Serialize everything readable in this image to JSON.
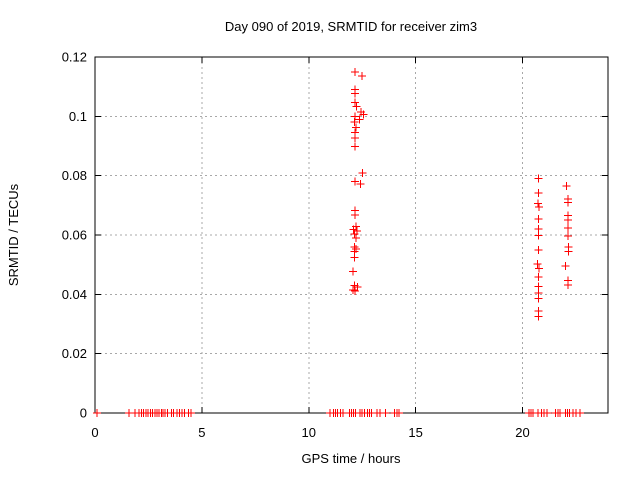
{
  "chart_data": {
    "type": "scatter",
    "title": "Day 090 of 2019, SRMTID for receiver zim3",
    "xlabel": "GPS time / hours",
    "ylabel": "SRMTID / TECUs",
    "xlim": [
      0,
      24
    ],
    "ylim": [
      0,
      0.12
    ],
    "x_ticks": [
      0,
      5,
      10,
      15,
      20
    ],
    "x_tick_labels": [
      "0",
      "5",
      "10",
      "15",
      "20"
    ],
    "y_ticks": [
      0,
      0.02,
      0.04,
      0.06,
      0.08,
      0.1,
      0.12
    ],
    "y_tick_labels": [
      "0",
      "0.02",
      "0.04",
      "0.06",
      "0.08",
      "0.1",
      "0.12"
    ],
    "grid": true,
    "legend": "none",
    "marker": "plus",
    "marker_color": "#ff0000",
    "grid_color": "#a8a8a8",
    "border_color": "#000000",
    "series": [
      {
        "name": "srmtid",
        "points": [
          [
            12.17,
            0.115
          ],
          [
            12.5,
            0.1136
          ],
          [
            12.17,
            0.109
          ],
          [
            12.17,
            0.1077
          ],
          [
            12.17,
            0.1047
          ],
          [
            12.24,
            0.1033
          ],
          [
            12.45,
            0.1015
          ],
          [
            12.55,
            0.1006
          ],
          [
            12.17,
            0.1
          ],
          [
            12.38,
            0.099
          ],
          [
            12.13,
            0.0981
          ],
          [
            12.22,
            0.0962
          ],
          [
            12.17,
            0.0946
          ],
          [
            12.17,
            0.0927
          ],
          [
            12.17,
            0.0899
          ],
          [
            12.52,
            0.0809
          ],
          [
            12.17,
            0.0781
          ],
          [
            12.41,
            0.0772
          ],
          [
            12.17,
            0.0682
          ],
          [
            12.17,
            0.0668
          ],
          [
            12.21,
            0.0629
          ],
          [
            12.1,
            0.0618
          ],
          [
            12.25,
            0.0614
          ],
          [
            12.15,
            0.0604
          ],
          [
            12.21,
            0.059
          ],
          [
            12.15,
            0.0559
          ],
          [
            12.2,
            0.0552
          ],
          [
            12.15,
            0.0545
          ],
          [
            12.15,
            0.0524
          ],
          [
            12.06,
            0.0477
          ],
          [
            12.15,
            0.0429
          ],
          [
            12.27,
            0.0424
          ],
          [
            12.08,
            0.0415
          ],
          [
            12.16,
            0.0411
          ],
          [
            20.74,
            0.0791
          ],
          [
            20.74,
            0.0742
          ],
          [
            20.72,
            0.0706
          ],
          [
            20.77,
            0.0695
          ],
          [
            20.74,
            0.0654
          ],
          [
            20.74,
            0.062
          ],
          [
            20.74,
            0.0598
          ],
          [
            20.74,
            0.055
          ],
          [
            20.71,
            0.0503
          ],
          [
            20.77,
            0.0487
          ],
          [
            20.74,
            0.0458
          ],
          [
            20.74,
            0.0426
          ],
          [
            20.74,
            0.0404
          ],
          [
            20.74,
            0.0386
          ],
          [
            20.74,
            0.0344
          ],
          [
            20.74,
            0.0325
          ],
          [
            22.05,
            0.0765
          ],
          [
            22.14,
            0.0721
          ],
          [
            22.14,
            0.0709
          ],
          [
            22.14,
            0.0665
          ],
          [
            22.14,
            0.0651
          ],
          [
            22.14,
            0.0623
          ],
          [
            22.14,
            0.0597
          ],
          [
            22.16,
            0.0559
          ],
          [
            22.16,
            0.0544
          ],
          [
            22.0,
            0.0496
          ],
          [
            22.14,
            0.0446
          ],
          [
            22.14,
            0.0432
          ],
          [
            0.1,
            0
          ],
          [
            1.6,
            0
          ],
          [
            1.86,
            0
          ],
          [
            2.05,
            0
          ],
          [
            2.18,
            0
          ],
          [
            2.28,
            0
          ],
          [
            2.38,
            0
          ],
          [
            2.47,
            0
          ],
          [
            2.6,
            0
          ],
          [
            2.7,
            0
          ],
          [
            2.8,
            0
          ],
          [
            2.9,
            0
          ],
          [
            3.0,
            0
          ],
          [
            3.1,
            0
          ],
          [
            3.18,
            0
          ],
          [
            3.28,
            0
          ],
          [
            3.39,
            0
          ],
          [
            3.57,
            0
          ],
          [
            3.68,
            0
          ],
          [
            3.84,
            0
          ],
          [
            3.96,
            0
          ],
          [
            4.07,
            0
          ],
          [
            4.19,
            0
          ],
          [
            4.38,
            0
          ],
          [
            4.5,
            0
          ],
          [
            11.0,
            0
          ],
          [
            11.15,
            0
          ],
          [
            11.25,
            0
          ],
          [
            11.35,
            0
          ],
          [
            11.49,
            0
          ],
          [
            11.6,
            0
          ],
          [
            11.9,
            0
          ],
          [
            12.0,
            0
          ],
          [
            12.1,
            0
          ],
          [
            12.19,
            0
          ],
          [
            12.4,
            0
          ],
          [
            12.5,
            0
          ],
          [
            12.6,
            0
          ],
          [
            12.75,
            0
          ],
          [
            12.85,
            0
          ],
          [
            12.94,
            0
          ],
          [
            13.2,
            0
          ],
          [
            13.33,
            0
          ],
          [
            13.59,
            0
          ],
          [
            14.01,
            0
          ],
          [
            14.12,
            0
          ],
          [
            14.22,
            0
          ],
          [
            20.3,
            0
          ],
          [
            20.4,
            0
          ],
          [
            20.5,
            0
          ],
          [
            20.73,
            0
          ],
          [
            20.89,
            0
          ],
          [
            21.01,
            0
          ],
          [
            21.14,
            0
          ],
          [
            21.55,
            0
          ],
          [
            21.65,
            0
          ],
          [
            21.75,
            0
          ],
          [
            22.0,
            0
          ],
          [
            22.1,
            0
          ],
          [
            22.2,
            0
          ],
          [
            22.37,
            0
          ],
          [
            22.5,
            0
          ],
          [
            22.7,
            0
          ]
        ]
      }
    ]
  }
}
